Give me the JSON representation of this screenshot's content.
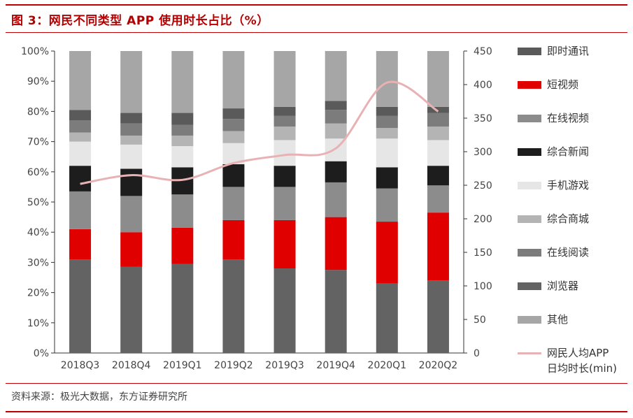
{
  "title": "图  3：网民不同类型 APP 使用时长占比（%）",
  "source": "资料来源：极光大数据，东方证券研究所",
  "colors": {
    "accent_red": "#c00000",
    "line": "#e8b2b5"
  },
  "chart_data": {
    "type": "bar",
    "stacked": true,
    "normalized_percent": true,
    "categories": [
      "2018Q3",
      "2018Q4",
      "2019Q1",
      "2019Q2",
      "2019Q3",
      "2019Q4",
      "2020Q1",
      "2020Q2"
    ],
    "ylim": [
      0,
      100
    ],
    "y_ticks": [
      "0%",
      "10%",
      "20%",
      "30%",
      "40%",
      "50%",
      "60%",
      "70%",
      "80%",
      "90%",
      "100%"
    ],
    "y2lim": [
      0,
      450
    ],
    "y2_ticks": [
      "0",
      "50",
      "100",
      "150",
      "200",
      "250",
      "300",
      "350",
      "400",
      "450"
    ],
    "grid": false,
    "legend_position": "right",
    "series": [
      {
        "name": "浏览器",
        "color": "#636363",
        "values": [
          31,
          28.5,
          29.5,
          31,
          28,
          27.5,
          23,
          24
        ]
      },
      {
        "name": "短视频",
        "color": "#e00000",
        "values": [
          10,
          11.5,
          12,
          13,
          16,
          17.5,
          20.5,
          22.5
        ]
      },
      {
        "name": "在线视频",
        "color": "#8c8c8c",
        "values": [
          12.5,
          12,
          11,
          11,
          11,
          11.5,
          11,
          9
        ]
      },
      {
        "name": "综合新闻",
        "color": "#1d1d1d",
        "values": [
          8.5,
          9,
          9,
          7.5,
          7,
          7,
          7,
          6.5
        ]
      },
      {
        "name": "手机游戏",
        "color": "#e6e6e6",
        "values": [
          8,
          8,
          7,
          7,
          8.5,
          7.5,
          9.5,
          8.5
        ]
      },
      {
        "name": "综合商城",
        "color": "#b4b4b4",
        "values": [
          3,
          3,
          3.5,
          4,
          4.5,
          5,
          3.5,
          4.5
        ]
      },
      {
        "name": "在线阅读",
        "color": "#7c7c7c",
        "values": [
          4,
          4,
          3.5,
          4,
          3.5,
          4.5,
          4,
          4.5
        ]
      },
      {
        "name": "即时通讯",
        "color": "#5a5a5a",
        "values": [
          3.5,
          3.5,
          4,
          3.5,
          3,
          3,
          3,
          2
        ]
      },
      {
        "name": "其他",
        "color": "#a6a6a6",
        "values": [
          19.5,
          20.5,
          20.5,
          19,
          18.5,
          16.5,
          18.5,
          18.5
        ]
      }
    ],
    "line_series": {
      "name": "网民人均APP日均时长(min)",
      "legend_lines": [
        "网民人均APP",
        "日均时长(min)"
      ],
      "color": "#e8b2b5",
      "axis": "right",
      "values": [
        252,
        265,
        258,
        283,
        295,
        305,
        403,
        360
      ]
    },
    "legend_order": [
      "即时通讯",
      "短视频",
      "在线视频",
      "综合新闻",
      "手机游戏",
      "综合商城",
      "在线阅读",
      "浏览器",
      "其他"
    ]
  }
}
